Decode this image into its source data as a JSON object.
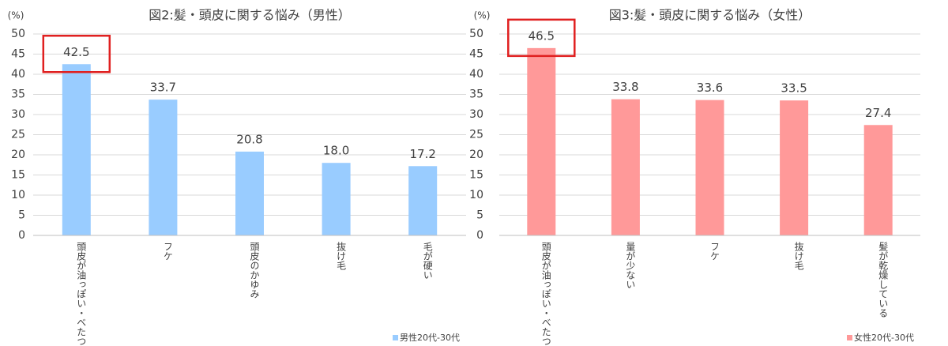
{
  "chart_data": [
    {
      "type": "bar",
      "title": "図2:髪・頭皮に関する悩み（男性）",
      "y_label": "(%)",
      "categories": [
        "頭皮が油っぽい・べたつく",
        "フケ",
        "頭皮のかゆみ",
        "抜け毛",
        "毛が硬い"
      ],
      "series": [
        {
          "name": "男性20代-30代",
          "color": "#99ccff",
          "values": [
            42.5,
            33.7,
            20.8,
            18.0,
            17.2
          ],
          "value_labels": [
            "42.5",
            "33.7",
            "20.8",
            "18.0",
            "17.2"
          ]
        }
      ],
      "ylim": [
        0,
        50
      ],
      "yticks": [
        0,
        5,
        10,
        15,
        20,
        25,
        30,
        35,
        40,
        45,
        50
      ],
      "grid": true,
      "legend": "bottom-right"
    },
    {
      "type": "bar",
      "title": "図3:髪・頭皮に関する悩み（女性）",
      "y_label": "(%)",
      "categories": [
        "頭皮が油っぽい・べたつく",
        "量が少ない",
        "フケ",
        "抜け毛",
        "髪が乾燥している"
      ],
      "series": [
        {
          "name": "女性20代-30代",
          "color": "#ff9999",
          "values": [
            46.5,
            33.8,
            33.6,
            33.5,
            27.4
          ],
          "value_labels": [
            "46.5",
            "33.8",
            "33.6",
            "33.5",
            "27.4"
          ]
        }
      ],
      "ylim": [
        0,
        50
      ],
      "yticks": [
        0,
        5,
        10,
        15,
        20,
        25,
        30,
        35,
        40,
        45,
        50
      ],
      "grid": true,
      "legend": "bottom-right"
    }
  ]
}
